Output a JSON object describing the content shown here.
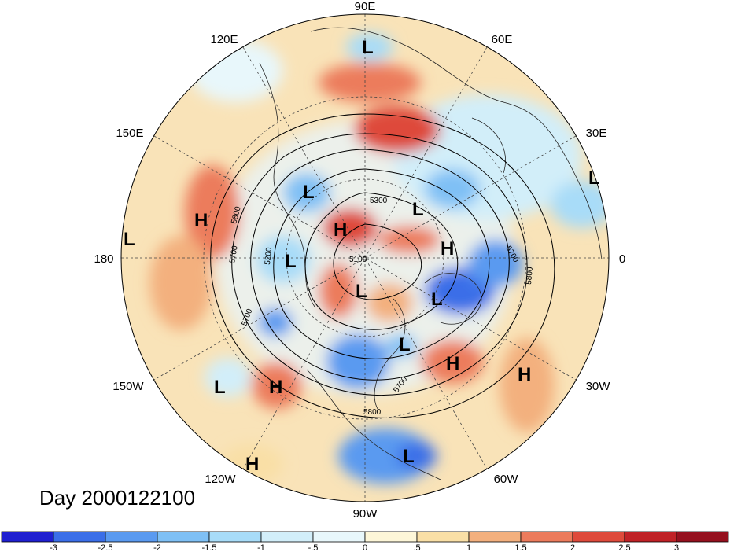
{
  "map": {
    "projection": "north polar stereographic",
    "longitude_labels": [
      "90E",
      "60E",
      "30E",
      "0",
      "30W",
      "60W",
      "90W",
      "120W",
      "150W",
      "180",
      "150E",
      "120E"
    ],
    "contour_labels": [
      "5300",
      "5800",
      "5700",
      "5200",
      "5100",
      "5700",
      "5700",
      "5800",
      "5700",
      "5800"
    ],
    "pressure_centers": [
      {
        "type": "L"
      },
      {
        "type": "L"
      },
      {
        "type": "L"
      },
      {
        "type": "L"
      },
      {
        "type": "L"
      },
      {
        "type": "L"
      },
      {
        "type": "L"
      },
      {
        "type": "L"
      },
      {
        "type": "L"
      },
      {
        "type": "L"
      },
      {
        "type": "L"
      },
      {
        "type": "H"
      },
      {
        "type": "H"
      },
      {
        "type": "H"
      },
      {
        "type": "H"
      },
      {
        "type": "H"
      },
      {
        "type": "H"
      },
      {
        "type": "H"
      }
    ]
  },
  "date_label": "Day 2000122100",
  "colorbar": {
    "tick_labels": [
      "-3",
      "-2.5",
      "-2",
      "-1.5",
      "-1",
      "-.5",
      "0",
      ".5",
      "1",
      "1.5",
      "2",
      "2.5",
      "3"
    ],
    "colors": [
      "#1f1fd0",
      "#3a6ee8",
      "#5a9af0",
      "#7fc0f5",
      "#a8dcf8",
      "#d2eef9",
      "#e8f7fb",
      "#fdf6d8",
      "#f9dfa6",
      "#f3b07e",
      "#ec7b5c",
      "#de4a3b",
      "#c02126",
      "#95101e"
    ]
  }
}
